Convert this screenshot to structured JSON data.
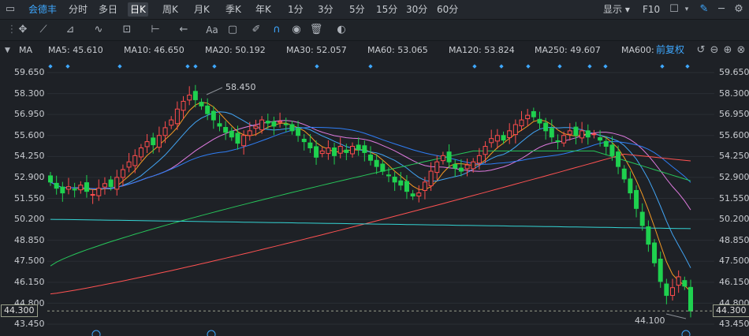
{
  "periodbar": {
    "stock_name": "会德丰",
    "periods": [
      "分时",
      "多日",
      "日K",
      "周K",
      "月K",
      "季K",
      "年K",
      "1分",
      "3分",
      "5分",
      "15分",
      "30分",
      "60分"
    ],
    "active": "日K",
    "display_label": "显示",
    "f10_label": "F10"
  },
  "toolbar": {
    "icons": [
      "crosshair-icon",
      "line-tool-icon",
      "channel-tool-icon",
      "wave-tool-icon",
      "measure-tool-icon",
      "range-tool-icon",
      "arrow-left-icon",
      "text-tool-icon",
      "comment-icon",
      "eraser-icon",
      "magnet-icon",
      "eye-icon",
      "trash-icon",
      "toggle-icon"
    ]
  },
  "mabar": {
    "label": "MA",
    "items": [
      {
        "text": "MA5: 45.610",
        "color": "#f59a23"
      },
      {
        "text": "MA10: 46.650",
        "color": "#42a5f5"
      },
      {
        "text": "MA20: 50.192",
        "color": "#e07be0"
      },
      {
        "text": "MA30: 52.057",
        "color": "#2f7ef5"
      },
      {
        "text": "MA60: 53.065",
        "color": "#27c65a"
      },
      {
        "text": "MA120: 53.824",
        "color": "#ff5252"
      },
      {
        "text": "MA250: 49.607",
        "color": "#34d3d3"
      },
      {
        "text": "MA600:",
        "color": "#d9a441"
      }
    ],
    "adjust_label": "前复权"
  },
  "axis": {
    "ticks": [
      "59.650",
      "58.300",
      "56.950",
      "55.600",
      "54.250",
      "52.900",
      "51.550",
      "50.200",
      "48.850",
      "47.500",
      "46.150",
      "44.800",
      "43.450"
    ],
    "current_price": "44.300"
  },
  "chart_data": {
    "type": "candlestick",
    "ylim": [
      43.45,
      59.65
    ],
    "y_ticks": [
      59.65,
      58.3,
      56.95,
      55.6,
      54.25,
      52.9,
      51.55,
      50.2,
      48.85,
      47.5,
      46.15,
      44.8,
      43.45
    ],
    "annotations": [
      {
        "text": "58.450",
        "label": "high"
      },
      {
        "text": "44.100",
        "label": "low"
      }
    ],
    "current_price": 44.3,
    "closes": [
      52.6,
      52.2,
      51.9,
      52.3,
      52.1,
      52.4,
      52.0,
      51.8,
      52.2,
      52.5,
      52.3,
      52.9,
      53.4,
      53.9,
      54.3,
      54.8,
      55.2,
      55.0,
      55.6,
      56.1,
      56.6,
      57.3,
      57.8,
      58.2,
      57.9,
      57.5,
      57.0,
      56.6,
      56.2,
      55.8,
      55.5,
      55.1,
      55.6,
      55.9,
      56.2,
      56.6,
      56.4,
      56.2,
      56.5,
      56.3,
      55.9,
      55.6,
      55.2,
      54.8,
      54.2,
      54.6,
      54.8,
      54.3,
      54.9,
      54.5,
      54.9,
      54.7,
      54.5,
      54.0,
      53.6,
      53.3,
      53.0,
      52.6,
      52.4,
      52.0,
      51.7,
      51.9,
      52.6,
      53.3,
      53.9,
      54.3,
      53.9,
      53.5,
      53.3,
      53.7,
      53.9,
      54.3,
      54.9,
      55.4,
      55.6,
      55.3,
      55.9,
      56.3,
      56.6,
      56.9,
      56.8,
      56.4,
      55.9,
      55.5,
      55.2,
      55.6,
      55.9,
      55.6,
      55.9,
      55.5,
      55.7,
      55.3,
      54.9,
      54.3,
      53.6,
      52.8,
      51.9,
      50.9,
      49.8,
      48.6,
      47.4,
      46.2,
      45.3,
      45.8,
      46.5,
      45.9,
      44.3
    ],
    "ma_series": [
      {
        "name": "MA5",
        "end": 45.61
      },
      {
        "name": "MA10",
        "end": 46.65
      },
      {
        "name": "MA20",
        "end": 50.192
      },
      {
        "name": "MA30",
        "end": 52.057
      },
      {
        "name": "MA60",
        "end": 53.065
      },
      {
        "name": "MA120",
        "end": 53.824
      },
      {
        "name": "MA250",
        "end": 49.607
      }
    ]
  }
}
